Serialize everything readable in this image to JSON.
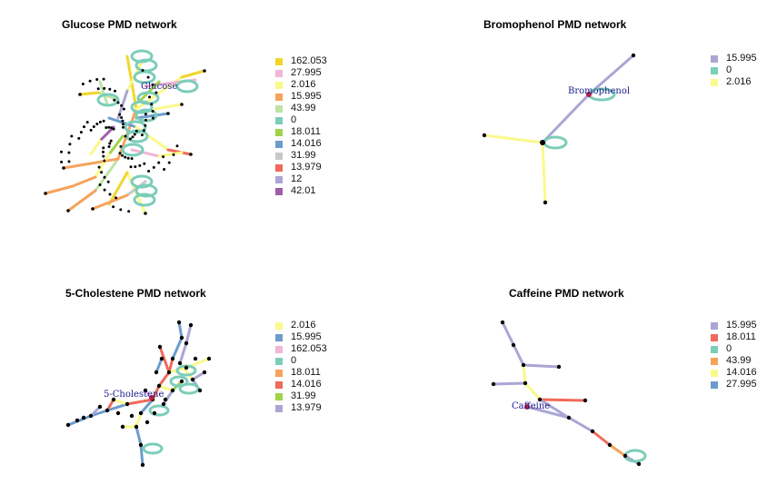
{
  "panels": [
    {
      "title": "Glucose PMD network",
      "label": "Glucose",
      "legend": [
        {
          "value": "162.053",
          "color": "#f2d62a"
        },
        {
          "value": "27.995",
          "color": "#f2b6d6"
        },
        {
          "value": "2.016",
          "color": "#fbf98a"
        },
        {
          "value": "15.995",
          "color": "#f5a35c"
        },
        {
          "value": "43.99",
          "color": "#bfe3a6"
        },
        {
          "value": "0",
          "color": "#7ccdb9"
        },
        {
          "value": "18.011",
          "color": "#9fd34a"
        },
        {
          "value": "14.016",
          "color": "#6c9ccc"
        },
        {
          "value": "31.99",
          "color": "#c8c8c8"
        },
        {
          "value": "13.979",
          "color": "#ef6a5a"
        },
        {
          "value": "12",
          "color": "#aaa6d4"
        },
        {
          "value": "42.01",
          "color": "#a05cab"
        }
      ]
    },
    {
      "title": "Bromophenol PMD network",
      "label": "Bromophenol",
      "legend": [
        {
          "value": "15.995",
          "color": "#aaa6d4"
        },
        {
          "value": "0",
          "color": "#7ccdb9"
        },
        {
          "value": "2.016",
          "color": "#fbf98a"
        }
      ]
    },
    {
      "title": "5-Cholestene PMD network",
      "label": "5-Cholestene",
      "legend": [
        {
          "value": "2.016",
          "color": "#fbf98a"
        },
        {
          "value": "15.995",
          "color": "#6c9ccc"
        },
        {
          "value": "162.053",
          "color": "#f2b6d6"
        },
        {
          "value": "0",
          "color": "#7ccdb9"
        },
        {
          "value": "18.011",
          "color": "#f5a35c"
        },
        {
          "value": "14.016",
          "color": "#ef6a5a"
        },
        {
          "value": "31.99",
          "color": "#9fd34a"
        },
        {
          "value": "13.979",
          "color": "#aaa6d4"
        }
      ]
    },
    {
      "title": "Caffeine PMD network",
      "label": "Caffeine",
      "legend": [
        {
          "value": "15.995",
          "color": "#aaa6d4"
        },
        {
          "value": "18.011",
          "color": "#ef6a5a"
        },
        {
          "value": "0",
          "color": "#7ccdb9"
        },
        {
          "value": "43.99",
          "color": "#f5a35c"
        },
        {
          "value": "14.016",
          "color": "#fbf98a"
        },
        {
          "value": "27.995",
          "color": "#6c9ccc"
        }
      ]
    }
  ]
}
